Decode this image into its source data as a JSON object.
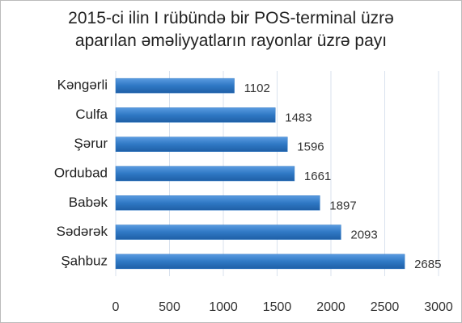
{
  "chart_data": {
    "type": "hbar",
    "title": "2015-ci ilin I rübündə bir POS-terminal üzrə aparılan əməliyyatların rayonlar üzrə payı",
    "categories": [
      "Kəngərli",
      "Culfa",
      "Şərur",
      "Ordubad",
      "Babək",
      "Sədərək",
      "Şahbuz"
    ],
    "values": [
      1102,
      1483,
      1596,
      1661,
      1897,
      2093,
      2685
    ],
    "color": "#2f78c4",
    "xlim": [
      0,
      3000
    ],
    "xticks": [
      0,
      500,
      1000,
      1500,
      2000,
      2500,
      3000
    ],
    "grid": true
  }
}
